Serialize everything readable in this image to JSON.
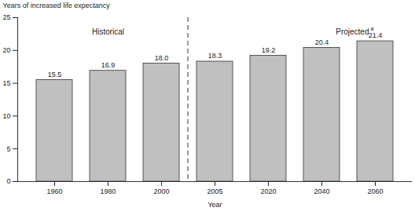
{
  "chart_data": {
    "type": "bar",
    "x_label": "Year",
    "y_label": "Years of increased life expectancy",
    "categories": [
      "1960",
      "1980",
      "2000",
      "2005",
      "2020",
      "2040",
      "2060"
    ],
    "values": [
      15.5,
      16.9,
      18.0,
      18.3,
      19.2,
      20.4,
      21.4
    ],
    "value_labels": [
      "15.5",
      "16.9",
      "18.0",
      "18.3",
      "19.2",
      "20.4",
      "21.4"
    ],
    "data_labels": true,
    "color": "#c0c0c0",
    "ylim": [
      0,
      25
    ],
    "yticks": [
      0,
      5,
      10,
      15,
      20,
      25
    ],
    "grid": false,
    "annotations": [
      {
        "text": "Historical",
        "categories": [
          "1960",
          "1980",
          "2000"
        ]
      },
      {
        "text": "Projected",
        "superscript": "a",
        "categories": [
          "2005",
          "2020",
          "2040",
          "2060"
        ]
      }
    ]
  }
}
